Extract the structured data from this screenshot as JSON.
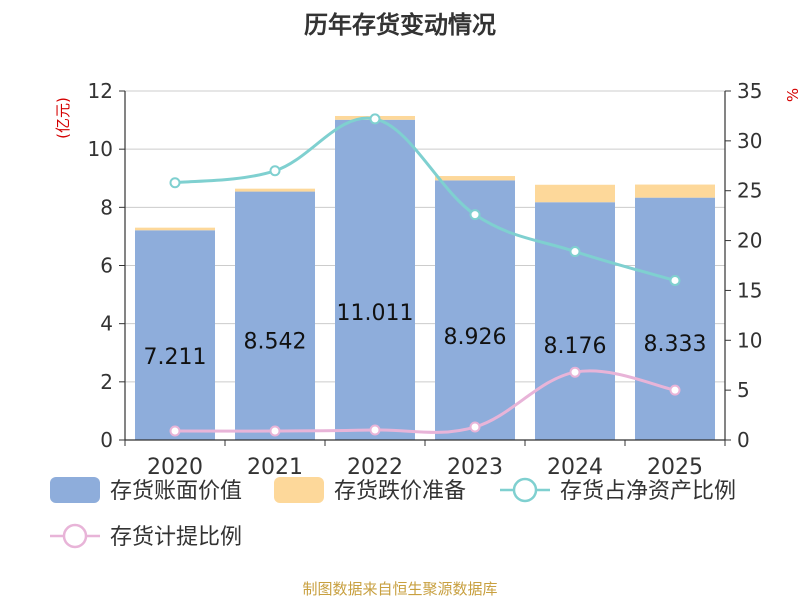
{
  "chart_data": {
    "type": "bar",
    "title": "历年存货变动情况",
    "categories": [
      "2020",
      "2021",
      "2022",
      "2023",
      "2024",
      "2025"
    ],
    "y_left": {
      "unit": "(亿元)",
      "range": [
        0,
        12
      ],
      "ticks": [
        "0",
        "2",
        "4",
        "6",
        "8",
        "10",
        "12"
      ]
    },
    "y_right": {
      "unit": "%",
      "range": [
        0,
        35
      ],
      "ticks": [
        "0",
        "5",
        "10",
        "15",
        "20",
        "25",
        "30",
        "35"
      ]
    },
    "series": [
      {
        "name": "存货账面价值",
        "kind": "bar",
        "axis": "left",
        "color": "#8eaddb",
        "values": [
          7.211,
          8.542,
          11.011,
          8.926,
          8.176,
          8.333
        ],
        "labels": [
          "7.211",
          "8.542",
          "11.011",
          "8.926",
          "8.176",
          "8.333"
        ]
      },
      {
        "name": "存货跌价准备",
        "kind": "bar-stack",
        "axis": "left",
        "color": "#fdd89a",
        "values": [
          0.09,
          0.1,
          0.13,
          0.15,
          0.6,
          0.45
        ]
      },
      {
        "name": "存货占净资产比例",
        "kind": "line",
        "axis": "right",
        "color": "#7fd0d0",
        "values": [
          25.8,
          27.0,
          32.2,
          22.6,
          18.9,
          16.0
        ]
      },
      {
        "name": "存货计提比例",
        "kind": "line",
        "axis": "right",
        "color": "#e8b4d8",
        "values": [
          0.9,
          0.9,
          1.0,
          1.3,
          6.8,
          5.0
        ]
      }
    ],
    "grid": true,
    "legend_position": "bottom"
  },
  "source_note": "制图数据来自恒生聚源数据库"
}
